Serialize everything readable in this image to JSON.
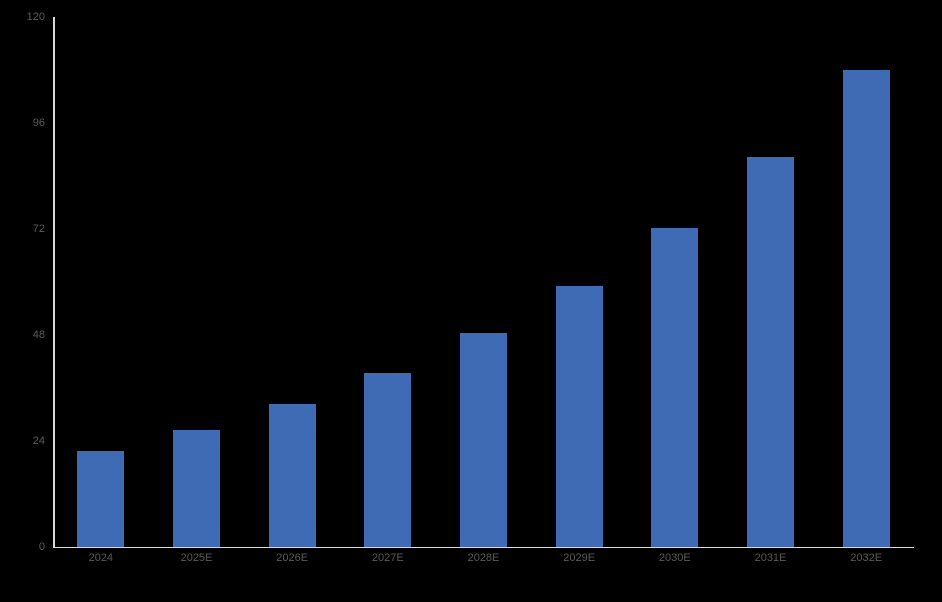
{
  "chart_data": {
    "type": "bar",
    "categories": [
      "2024",
      "2025E",
      "2026E",
      "2027E",
      "2028E",
      "2029E",
      "2030E",
      "2031E",
      "2032E"
    ],
    "values": [
      21.7,
      26.5,
      32.4,
      39.5,
      48.5,
      59.2,
      72.3,
      88.4,
      108.0
    ],
    "ylim": [
      0,
      120
    ],
    "y_ticks": [
      0,
      24,
      48,
      72,
      96,
      120
    ],
    "grid": false,
    "legend": false,
    "colors": {
      "background": "#000000",
      "bar": "#3E6BB3",
      "axis_line": "#D9D9D9",
      "tick_label": "#5A5A5A"
    }
  }
}
